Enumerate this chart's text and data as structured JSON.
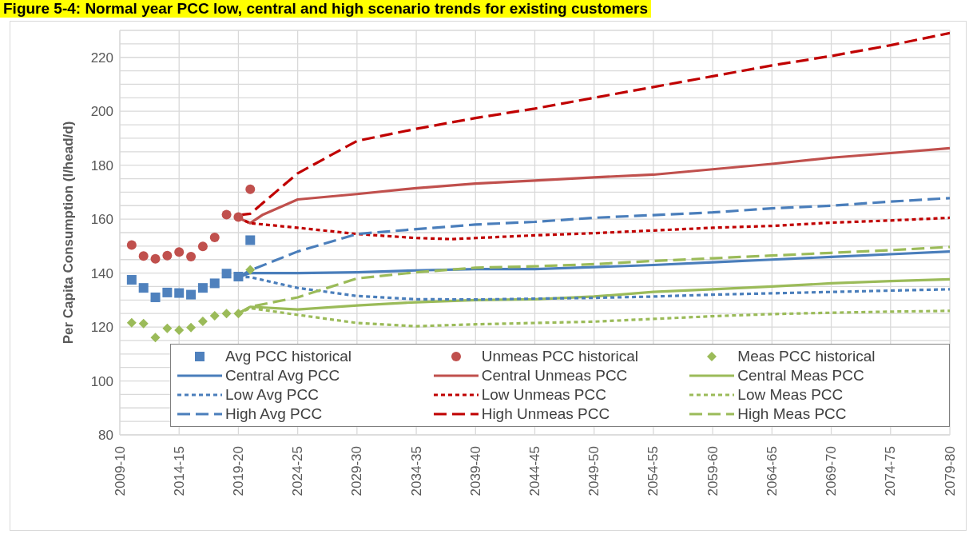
{
  "chart_data": {
    "type": "line",
    "title": "Figure 5-4: Normal year PCC low, central and high scenario trends for existing customers",
    "ylabel": "Per Capita Consumption (l/head/d)",
    "categories": [
      "2009-10",
      null,
      null,
      null,
      null,
      "2014-15",
      null,
      null,
      null,
      null,
      "2019-20",
      null,
      null,
      null,
      null,
      "2024-25",
      null,
      null,
      null,
      null,
      "2029-30",
      null,
      null,
      null,
      null,
      "2034-35",
      null,
      null,
      null,
      null,
      "2039-40",
      null,
      null,
      null,
      null,
      "2044-45",
      null,
      null,
      null,
      null,
      "2049-50",
      null,
      null,
      null,
      null,
      "2054-55",
      null,
      null,
      null,
      null,
      "2059-60",
      null,
      null,
      null,
      null,
      "2064-65",
      null,
      null,
      null,
      null,
      "2069-70",
      null,
      null,
      null,
      null,
      "2074-75",
      null,
      null,
      null,
      null,
      "2079-80"
    ],
    "ylim": [
      80,
      230
    ],
    "yticks": [
      80,
      {
        "value": 85,
        "label": null
      },
      {
        "value": 90,
        "label": null
      },
      {
        "value": 95,
        "label": null
      },
      100,
      {
        "value": 105,
        "label": null
      },
      {
        "value": 110,
        "label": null
      },
      {
        "value": 115,
        "label": null
      },
      120,
      {
        "value": 125,
        "label": null
      },
      {
        "value": 130,
        "label": null
      },
      {
        "value": 135,
        "label": null
      },
      140,
      {
        "value": 145,
        "label": null
      },
      {
        "value": 150,
        "label": null
      },
      {
        "value": 155,
        "label": null
      },
      160,
      {
        "value": 165,
        "label": null
      },
      {
        "value": 170,
        "label": null
      },
      {
        "value": 175,
        "label": null
      },
      180,
      {
        "value": 185,
        "label": null
      },
      {
        "value": 190,
        "label": null
      },
      {
        "value": 195,
        "label": null
      },
      200,
      {
        "value": 205,
        "label": null
      },
      {
        "value": 210,
        "label": null
      },
      {
        "value": 215,
        "label": null
      },
      220,
      {
        "value": 225,
        "label": null
      },
      {
        "value": 230,
        "label": null
      }
    ],
    "grid": true,
    "legend": "bottom",
    "series": [
      {
        "name": "Avg PCC historical",
        "type": "scatter",
        "marker": "square",
        "color": "#4f81bd",
        "values": [
          null,
          137.5,
          134.5,
          131,
          132.8,
          132.6,
          132,
          134.5,
          136.2,
          139.8,
          138.7,
          152.2,
          null,
          null,
          null,
          null,
          null,
          null,
          null,
          null,
          null,
          null,
          null,
          null,
          null,
          null,
          null,
          null,
          null,
          null,
          null,
          null,
          null,
          null,
          null,
          null,
          null,
          null,
          null,
          null,
          null,
          null,
          null,
          null,
          null,
          null,
          null,
          null,
          null,
          null,
          null,
          null,
          null,
          null,
          null,
          null,
          null,
          null,
          null,
          null,
          null,
          null,
          null,
          null,
          null,
          null,
          null,
          null,
          null,
          null,
          null
        ]
      },
      {
        "name": "Unmeas PCC historical",
        "type": "scatter",
        "marker": "circle",
        "color": "#c0504d",
        "values": [
          null,
          150.4,
          146.3,
          145.3,
          146.5,
          147.8,
          146.1,
          149.9,
          153.2,
          161.7,
          160.8,
          171.1,
          null,
          null,
          null,
          null,
          null,
          null,
          null,
          null,
          null,
          null,
          null,
          null,
          null,
          null,
          null,
          null,
          null,
          null,
          null,
          null,
          null,
          null,
          null,
          null,
          null,
          null,
          null,
          null,
          null,
          null,
          null,
          null,
          null,
          null,
          null,
          null,
          null,
          null,
          null,
          null,
          null,
          null,
          null,
          null,
          null,
          null,
          null,
          null,
          null,
          null,
          null,
          null,
          null,
          null,
          null,
          null,
          null,
          null,
          null
        ]
      },
      {
        "name": "Meas PCC historical",
        "type": "scatter",
        "marker": "diamond",
        "color": "#9bbb59",
        "values": [
          null,
          121.6,
          121.3,
          116.1,
          119.5,
          118.8,
          119.8,
          122.1,
          124.2,
          125,
          125,
          141.2,
          null,
          null,
          null,
          null,
          null,
          null,
          null,
          null,
          null,
          null,
          null,
          null,
          null,
          null,
          null,
          null,
          null,
          null,
          null,
          null,
          null,
          null,
          null,
          null,
          null,
          null,
          null,
          null,
          null,
          null,
          null,
          null,
          null,
          null,
          null,
          null,
          null,
          null,
          null,
          null,
          null,
          null,
          null,
          null,
          null,
          null,
          null,
          null,
          null,
          null,
          null,
          null,
          null,
          null,
          null,
          null,
          null,
          null,
          null
        ]
      },
      {
        "name": "Central Avg PCC",
        "line_style": "solid",
        "color": "#4a7ebb",
        "values": [
          null,
          null,
          null,
          null,
          null,
          null,
          null,
          null,
          null,
          null,
          138.5,
          140,
          null,
          null,
          null,
          140,
          null,
          null,
          null,
          null,
          140.3,
          null,
          null,
          null,
          null,
          141,
          null,
          null,
          null,
          null,
          141.5,
          null,
          null,
          null,
          null,
          141.5,
          null,
          null,
          null,
          null,
          142.2,
          null,
          null,
          null,
          null,
          143,
          null,
          null,
          null,
          null,
          144,
          null,
          null,
          null,
          null,
          145,
          null,
          null,
          null,
          null,
          146,
          null,
          null,
          null,
          null,
          147,
          null,
          null,
          null,
          null,
          148
        ]
      },
      {
        "name": "Central Unmeas PCC",
        "line_style": "solid",
        "color": "#c0504d",
        "values": [
          null,
          null,
          null,
          null,
          null,
          null,
          null,
          null,
          null,
          null,
          160.5,
          158.5,
          161.5,
          null,
          null,
          167.3,
          null,
          null,
          null,
          null,
          169.3,
          null,
          null,
          null,
          null,
          171.5,
          null,
          null,
          null,
          null,
          173.2,
          null,
          null,
          null,
          null,
          174.3,
          null,
          null,
          null,
          null,
          175.5,
          null,
          null,
          null,
          null,
          176.5,
          null,
          null,
          null,
          null,
          178.5,
          null,
          null,
          null,
          null,
          180.5,
          null,
          null,
          null,
          null,
          182.8,
          null,
          null,
          null,
          null,
          184.5,
          null,
          null,
          null,
          null,
          186.3
        ]
      },
      {
        "name": "Central Meas PCC",
        "line_style": "solid",
        "color": "#9bbb59",
        "values": [
          null,
          null,
          null,
          null,
          null,
          null,
          null,
          null,
          null,
          null,
          125,
          127.5,
          null,
          null,
          null,
          126.5,
          null,
          null,
          null,
          null,
          128,
          null,
          null,
          null,
          null,
          129.2,
          null,
          null,
          null,
          null,
          130,
          null,
          null,
          null,
          null,
          130.3,
          null,
          null,
          null,
          null,
          131.3,
          null,
          null,
          null,
          null,
          133,
          null,
          null,
          null,
          null,
          134,
          null,
          null,
          null,
          null,
          135,
          null,
          null,
          null,
          null,
          136.2,
          null,
          null,
          null,
          null,
          137,
          null,
          null,
          null,
          null,
          137.7
        ]
      },
      {
        "name": "Low Avg PCC",
        "line_style": "dotted",
        "color": "#4a7ebb",
        "values": [
          null,
          null,
          null,
          null,
          null,
          null,
          null,
          null,
          null,
          null,
          138.5,
          138.5,
          null,
          null,
          null,
          134.5,
          null,
          null,
          null,
          null,
          131.5,
          null,
          null,
          null,
          null,
          130.3,
          null,
          null,
          null,
          null,
          130.2,
          null,
          null,
          null,
          null,
          130.5,
          null,
          null,
          null,
          null,
          130.8,
          null,
          null,
          null,
          null,
          131.3,
          null,
          null,
          null,
          null,
          132,
          null,
          null,
          null,
          null,
          132.5,
          null,
          null,
          null,
          null,
          133,
          null,
          null,
          null,
          null,
          133.5,
          null,
          null,
          null,
          null,
          134
        ]
      },
      {
        "name": "Low Unmeas PCC",
        "line_style": "dotted",
        "color": "#c00000",
        "values": [
          null,
          null,
          null,
          null,
          null,
          null,
          null,
          null,
          null,
          null,
          160.5,
          158.5,
          null,
          null,
          null,
          156.8,
          null,
          null,
          null,
          null,
          154.5,
          null,
          null,
          null,
          null,
          153,
          null,
          null,
          152.6,
          null,
          153,
          null,
          null,
          null,
          null,
          154,
          null,
          null,
          null,
          null,
          154.8,
          null,
          null,
          null,
          null,
          155.8,
          null,
          null,
          null,
          null,
          156.8,
          null,
          null,
          null,
          null,
          157.5,
          null,
          null,
          null,
          null,
          158.7,
          null,
          null,
          null,
          null,
          159.5,
          null,
          null,
          null,
          null,
          160.5
        ]
      },
      {
        "name": "Low Meas PCC",
        "line_style": "dotted",
        "color": "#9bbb59",
        "values": [
          null,
          null,
          null,
          null,
          null,
          null,
          null,
          null,
          null,
          null,
          125,
          127,
          null,
          null,
          null,
          124.5,
          null,
          null,
          null,
          null,
          121.5,
          null,
          null,
          null,
          null,
          120.3,
          null,
          null,
          null,
          null,
          121,
          null,
          null,
          null,
          null,
          121.5,
          null,
          null,
          null,
          null,
          122,
          null,
          null,
          null,
          null,
          123,
          null,
          null,
          null,
          null,
          124,
          null,
          null,
          null,
          null,
          124.8,
          null,
          null,
          null,
          null,
          125.3,
          null,
          null,
          null,
          null,
          125.7,
          null,
          null,
          null,
          null,
          126
        ]
      },
      {
        "name": "High Avg PCC",
        "line_style": "dashed",
        "color": "#4a7ebb",
        "values": [
          null,
          null,
          null,
          null,
          null,
          null,
          null,
          null,
          null,
          null,
          138.5,
          141,
          null,
          null,
          null,
          148,
          null,
          null,
          null,
          null,
          154.5,
          null,
          null,
          null,
          null,
          156.3,
          null,
          null,
          null,
          null,
          158,
          null,
          null,
          null,
          null,
          159,
          null,
          null,
          null,
          null,
          160.5,
          null,
          null,
          null,
          null,
          161.5,
          null,
          null,
          null,
          null,
          162.5,
          null,
          null,
          null,
          null,
          164,
          null,
          null,
          null,
          null,
          165,
          null,
          null,
          null,
          null,
          166.5,
          null,
          null,
          null,
          null,
          167.8
        ]
      },
      {
        "name": "High Unmeas PCC",
        "line_style": "dashed",
        "color": "#c00000",
        "values": [
          null,
          null,
          null,
          null,
          null,
          null,
          null,
          null,
          null,
          null,
          161.5,
          162,
          null,
          null,
          null,
          177,
          null,
          null,
          null,
          null,
          189,
          null,
          null,
          null,
          null,
          193.5,
          null,
          null,
          null,
          null,
          197.5,
          null,
          null,
          null,
          null,
          201,
          null,
          null,
          null,
          null,
          205,
          null,
          null,
          null,
          null,
          209,
          null,
          null,
          null,
          null,
          213,
          null,
          null,
          null,
          null,
          217,
          null,
          null,
          null,
          null,
          220.5,
          null,
          null,
          null,
          null,
          224.5,
          null,
          null,
          null,
          null,
          229
        ]
      },
      {
        "name": "High Meas PCC",
        "line_style": "dashed",
        "color": "#9bbb59",
        "values": [
          null,
          null,
          null,
          null,
          null,
          null,
          null,
          null,
          null,
          null,
          125,
          127.5,
          null,
          null,
          null,
          131,
          null,
          null,
          null,
          null,
          138,
          null,
          null,
          null,
          null,
          140.3,
          null,
          null,
          null,
          null,
          142,
          null,
          null,
          null,
          null,
          142.5,
          null,
          null,
          null,
          null,
          143.3,
          null,
          null,
          null,
          null,
          144.5,
          null,
          null,
          null,
          null,
          145.5,
          null,
          null,
          null,
          null,
          146.5,
          null,
          null,
          null,
          null,
          147.5,
          null,
          null,
          null,
          null,
          148.5,
          null,
          null,
          null,
          null,
          149.7
        ]
      }
    ]
  }
}
